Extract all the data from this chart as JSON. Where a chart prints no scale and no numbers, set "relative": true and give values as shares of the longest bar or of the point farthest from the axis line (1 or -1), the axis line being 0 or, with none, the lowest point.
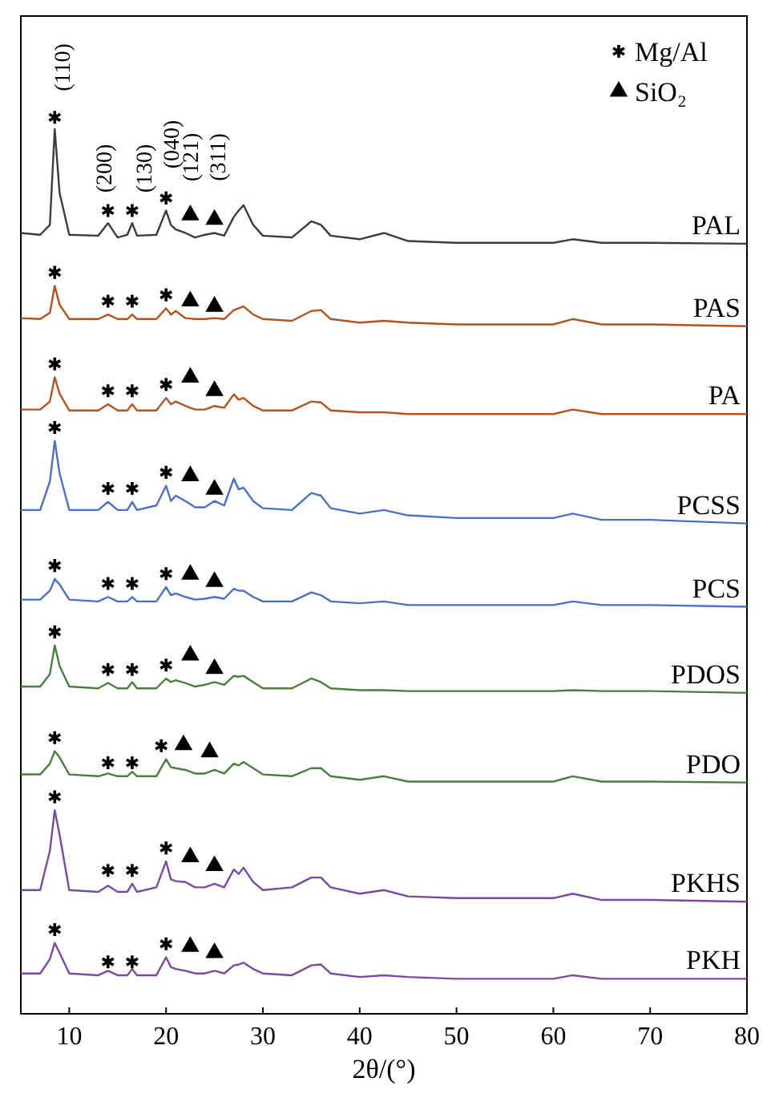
{
  "chart_data": {
    "type": "line",
    "relative": true,
    "xlabel": "2θ/(°)",
    "xlim": [
      5,
      80
    ],
    "xticks": [
      10,
      20,
      30,
      40,
      50,
      60,
      70,
      80
    ],
    "legend": "top right",
    "grid": false,
    "x": [
      5,
      7,
      8,
      8.5,
      9,
      10,
      13,
      14,
      15,
      16,
      16.5,
      17,
      19,
      20,
      20.5,
      21,
      22,
      23,
      24,
      25,
      26,
      27,
      27.5,
      28,
      29,
      30,
      33,
      35,
      36,
      37,
      40,
      42.5,
      45,
      50,
      60,
      62,
      65,
      70,
      80
    ],
    "annotations": [
      "(110)",
      "(200)",
      "(130)",
      "(040)",
      "(121)",
      "(311)"
    ],
    "series": [
      {
        "name": "PAL",
        "color": "#3c3c3c",
        "values": [
          0.871,
          0.869,
          0.88,
          0.987,
          0.916,
          0.869,
          0.868,
          0.882,
          0.866,
          0.869,
          0.882,
          0.868,
          0.869,
          0.896,
          0.88,
          0.875,
          0.871,
          0.866,
          0.869,
          0.871,
          0.868,
          0.889,
          0.896,
          0.902,
          0.88,
          0.868,
          0.866,
          0.884,
          0.88,
          0.868,
          0.864,
          0.871,
          0.862,
          0.86,
          0.86,
          0.864,
          0.86,
          0.86,
          0.859
        ]
      },
      {
        "name": "PAS",
        "color": "#b5531f",
        "values": [
          0.776,
          0.775,
          0.782,
          0.812,
          0.791,
          0.775,
          0.775,
          0.78,
          0.775,
          0.775,
          0.78,
          0.775,
          0.775,
          0.787,
          0.78,
          0.784,
          0.776,
          0.775,
          0.775,
          0.776,
          0.775,
          0.785,
          0.787,
          0.789,
          0.78,
          0.775,
          0.773,
          0.784,
          0.785,
          0.775,
          0.771,
          0.773,
          0.771,
          0.769,
          0.769,
          0.775,
          0.769,
          0.769,
          0.767
        ]
      },
      {
        "name": "PA",
        "color": "#b5531f",
        "values": [
          0.674,
          0.674,
          0.683,
          0.71,
          0.692,
          0.673,
          0.673,
          0.68,
          0.673,
          0.673,
          0.68,
          0.673,
          0.673,
          0.687,
          0.68,
          0.683,
          0.678,
          0.674,
          0.674,
          0.678,
          0.676,
          0.691,
          0.685,
          0.687,
          0.678,
          0.673,
          0.673,
          0.683,
          0.682,
          0.673,
          0.671,
          0.671,
          0.669,
          0.669,
          0.669,
          0.674,
          0.669,
          0.669,
          0.669
        ]
      },
      {
        "name": "PCSS",
        "color": "#4a72c4",
        "values": [
          0.562,
          0.562,
          0.594,
          0.639,
          0.603,
          0.562,
          0.562,
          0.571,
          0.562,
          0.562,
          0.571,
          0.562,
          0.567,
          0.589,
          0.572,
          0.578,
          0.572,
          0.565,
          0.565,
          0.572,
          0.567,
          0.597,
          0.585,
          0.587,
          0.572,
          0.564,
          0.562,
          0.581,
          0.578,
          0.564,
          0.558,
          0.562,
          0.556,
          0.553,
          0.553,
          0.558,
          0.551,
          0.551,
          0.547
        ]
      },
      {
        "name": "PCS",
        "color": "#4a72c4",
        "values": [
          0.462,
          0.462,
          0.472,
          0.485,
          0.479,
          0.462,
          0.46,
          0.465,
          0.46,
          0.46,
          0.465,
          0.46,
          0.46,
          0.476,
          0.467,
          0.469,
          0.465,
          0.462,
          0.463,
          0.465,
          0.463,
          0.474,
          0.472,
          0.472,
          0.465,
          0.46,
          0.46,
          0.47,
          0.467,
          0.46,
          0.458,
          0.46,
          0.456,
          0.456,
          0.456,
          0.46,
          0.456,
          0.456,
          0.454
        ]
      },
      {
        "name": "PDOS",
        "color": "#4a7f3e",
        "values": [
          0.365,
          0.365,
          0.379,
          0.411,
          0.388,
          0.365,
          0.363,
          0.369,
          0.363,
          0.363,
          0.37,
          0.363,
          0.363,
          0.374,
          0.37,
          0.372,
          0.369,
          0.365,
          0.367,
          0.37,
          0.367,
          0.377,
          0.376,
          0.377,
          0.37,
          0.363,
          0.363,
          0.374,
          0.37,
          0.363,
          0.361,
          0.361,
          0.36,
          0.36,
          0.36,
          0.361,
          0.36,
          0.36,
          0.358
        ]
      },
      {
        "name": "PDO",
        "color": "#4a7f3e",
        "values": [
          0.267,
          0.267,
          0.279,
          0.293,
          0.286,
          0.267,
          0.265,
          0.268,
          0.265,
          0.265,
          0.27,
          0.265,
          0.265,
          0.284,
          0.275,
          0.274,
          0.272,
          0.268,
          0.268,
          0.272,
          0.268,
          0.279,
          0.277,
          0.281,
          0.274,
          0.267,
          0.265,
          0.274,
          0.274,
          0.265,
          0.261,
          0.265,
          0.259,
          0.259,
          0.259,
          0.265,
          0.259,
          0.259,
          0.258
        ]
      },
      {
        "name": "PKHS",
        "color": "#7a4aa0",
        "values": [
          0.138,
          0.138,
          0.182,
          0.227,
          0.2,
          0.138,
          0.136,
          0.143,
          0.136,
          0.136,
          0.145,
          0.136,
          0.141,
          0.17,
          0.15,
          0.148,
          0.147,
          0.141,
          0.141,
          0.145,
          0.141,
          0.161,
          0.156,
          0.163,
          0.147,
          0.138,
          0.141,
          0.152,
          0.152,
          0.141,
          0.134,
          0.138,
          0.131,
          0.129,
          0.129,
          0.134,
          0.127,
          0.127,
          0.125
        ]
      },
      {
        "name": "PKH",
        "color": "#7a4aa0",
        "values": [
          0.045,
          0.045,
          0.061,
          0.079,
          0.068,
          0.045,
          0.043,
          0.048,
          0.043,
          0.043,
          0.05,
          0.043,
          0.043,
          0.063,
          0.052,
          0.05,
          0.048,
          0.045,
          0.045,
          0.048,
          0.045,
          0.054,
          0.055,
          0.057,
          0.05,
          0.045,
          0.043,
          0.054,
          0.055,
          0.045,
          0.041,
          0.043,
          0.041,
          0.039,
          0.039,
          0.043,
          0.039,
          0.039,
          0.039
        ]
      },
      {
        "name": "Mg/Al",
        "type": "scatter",
        "marker": "cross",
        "color": "#000000",
        "x": [
          8.5,
          14,
          16.5,
          20,
          8.5,
          14,
          16.5,
          20,
          8.5,
          14,
          16.5,
          20,
          8.5,
          14,
          16.5,
          20,
          8.5,
          14,
          16.5,
          20,
          8.5,
          14,
          16.5,
          20,
          8.5,
          14,
          16.5,
          19.5,
          8.5,
          14,
          16.5,
          20,
          8.5,
          14,
          16.5,
          20
        ],
        "values": [
          1,
          0.896,
          0.896,
          0.91,
          0.827,
          0.795,
          0.795,
          0.802,
          0.725,
          0.695,
          0.695,
          0.702,
          0.654,
          0.586,
          0.586,
          0.604,
          0.5,
          0.48,
          0.48,
          0.491,
          0.426,
          0.384,
          0.384,
          0.389,
          0.308,
          0.28,
          0.28,
          0.299,
          0.242,
          0.16,
          0.16,
          0.185,
          0.094,
          0.058,
          0.058,
          0.078
        ]
      },
      {
        "name": "SiO₂",
        "type": "scatter",
        "marker": "triangle",
        "color": "#000000",
        "x": [
          22.5,
          25,
          22.5,
          25,
          22.5,
          25,
          22.5,
          25,
          22.5,
          25,
          22.5,
          25,
          21.8,
          24.5,
          22.5,
          25,
          22.5,
          25
        ],
        "values": [
          0.891,
          0.886,
          0.795,
          0.789,
          0.71,
          0.695,
          0.6,
          0.585,
          0.49,
          0.482,
          0.4,
          0.385,
          0.3,
          0.292,
          0.175,
          0.165,
          0.075,
          0.068
        ]
      }
    ]
  }
}
